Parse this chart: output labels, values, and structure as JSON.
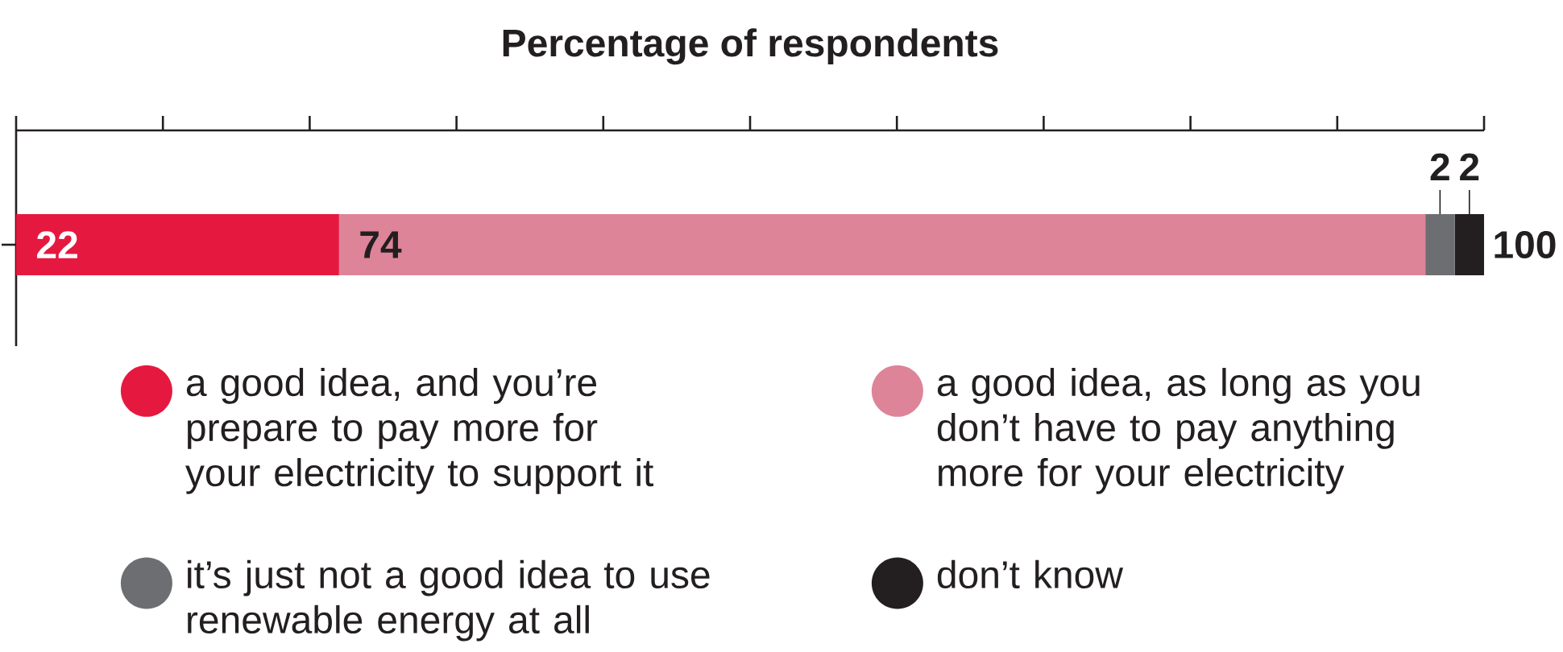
{
  "chart_data": {
    "type": "bar",
    "orientation": "horizontal",
    "stacked": true,
    "title": "Percentage of respondents",
    "categories": [
      null
    ],
    "series": [
      {
        "name": "a good idea, and you’re prepare to pay more for your electricity to support it",
        "color": "#e51940",
        "values": [
          22
        ]
      },
      {
        "name": "a good idea, as long as you don’t have to pay anything more for your electricity",
        "color": "#dd8499",
        "values": [
          74
        ]
      },
      {
        "name": "it’s just not a good idea to use renewable energy at all",
        "color": "#6d6e71",
        "values": [
          2
        ]
      },
      {
        "name": "don’t know",
        "color": "#231f20",
        "values": [
          2
        ]
      }
    ],
    "data_labels": true,
    "totals": [
      "100"
    ],
    "legend": "bottom"
  }
}
